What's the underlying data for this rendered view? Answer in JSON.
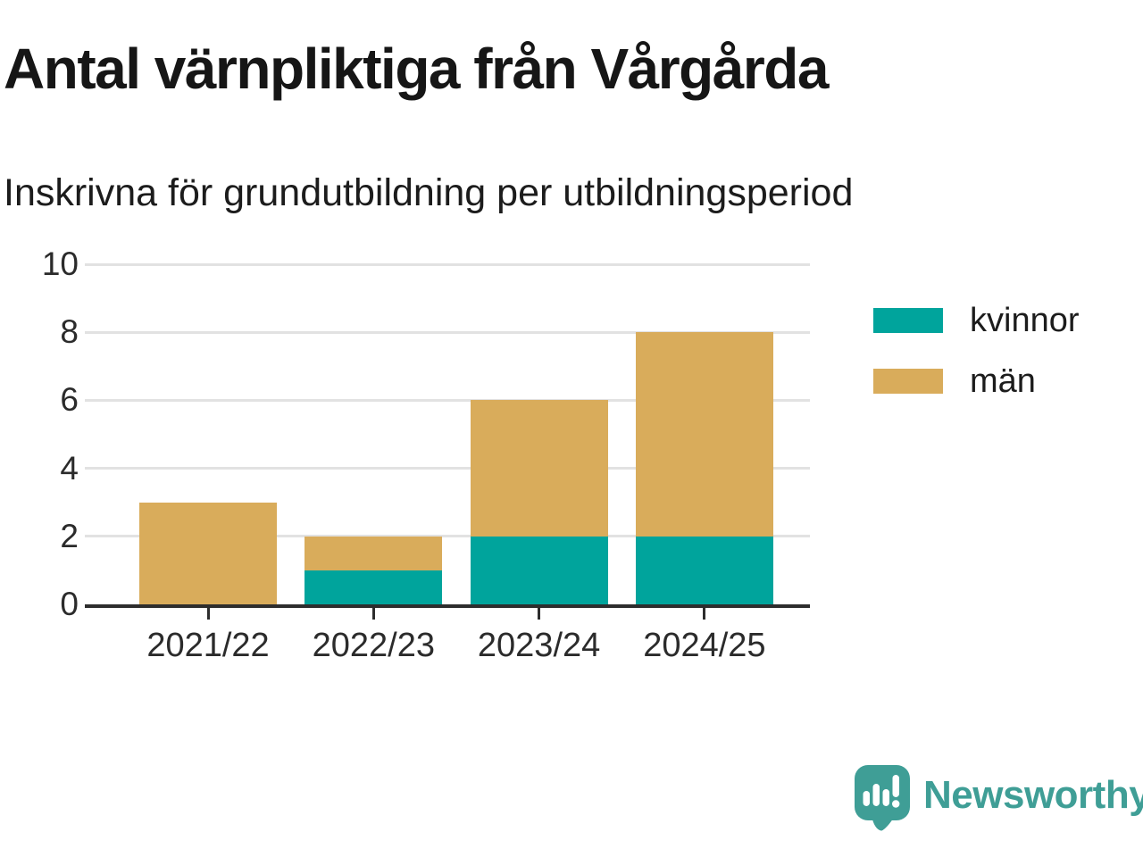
{
  "title": "Antal värnpliktiga från Vårgårda",
  "subtitle": "Inskrivna för grundutbildning per utbildningsperiod",
  "colors": {
    "kvinnor": "#00a49c",
    "man": "#d9ac5b",
    "grid": "#e2e2e2",
    "axis": "#2d2d2d",
    "text": "#1c1c1c",
    "logo_teal": "#3f9e96"
  },
  "chart_data": {
    "type": "bar",
    "stacked": true,
    "title": "Antal värnpliktiga från Vårgårda",
    "subtitle": "Inskrivna för grundutbildning per utbildningsperiod",
    "categories": [
      "2021/22",
      "2022/23",
      "2023/24",
      "2024/25"
    ],
    "series": [
      {
        "name": "kvinnor",
        "color": "#00a49c",
        "values": [
          0,
          1,
          2,
          2
        ]
      },
      {
        "name": "män",
        "color": "#d9ac5b",
        "values": [
          3,
          1,
          4,
          6
        ]
      }
    ],
    "totals": [
      3,
      2,
      6,
      8
    ],
    "xlabel": "",
    "ylabel": "",
    "ylim": [
      0,
      10
    ],
    "yticks": [
      0,
      2,
      4,
      6,
      8,
      10
    ],
    "grid": "horizontal",
    "legend_position": "right"
  },
  "legend": {
    "items": [
      {
        "label": "kvinnor"
      },
      {
        "label": "män"
      }
    ]
  },
  "logo": {
    "text": "Newsworthy",
    "icon": "newsworthy-bubble-chart-icon"
  }
}
